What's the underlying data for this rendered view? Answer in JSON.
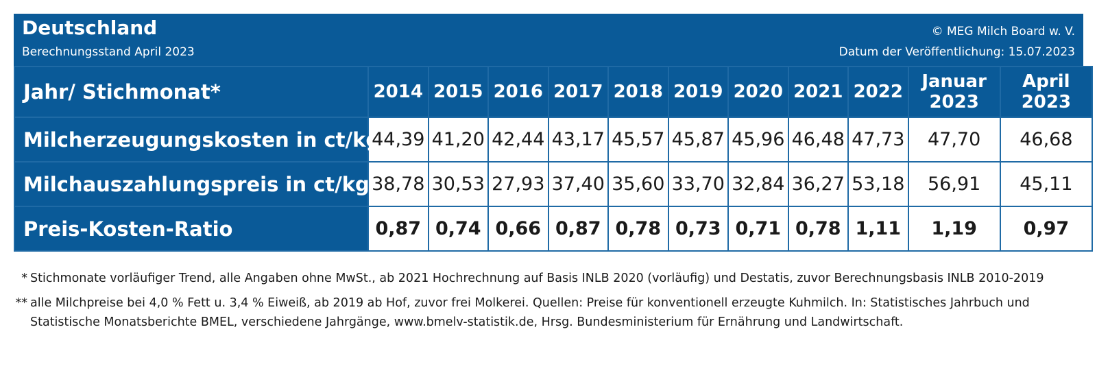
{
  "header": {
    "title": "Deutschland",
    "subtitle": "Berechnungsstand April 2023",
    "copyright": "© MEG Milch Board w. V.",
    "publication_date": "Datum der Veröffentlichung: 15.07.2023"
  },
  "chart_data": {
    "type": "table",
    "corner_label": "Jahr/ Stichmonat*",
    "columns": [
      {
        "line1": "2014",
        "line2": ""
      },
      {
        "line1": "2015",
        "line2": ""
      },
      {
        "line1": "2016",
        "line2": ""
      },
      {
        "line1": "2017",
        "line2": ""
      },
      {
        "line1": "2018",
        "line2": ""
      },
      {
        "line1": "2019",
        "line2": ""
      },
      {
        "line1": "2020",
        "line2": ""
      },
      {
        "line1": "2021",
        "line2": ""
      },
      {
        "line1": "2022",
        "line2": ""
      },
      {
        "line1": "Januar",
        "line2": "2023"
      },
      {
        "line1": "April",
        "line2": "2023"
      }
    ],
    "rows": [
      {
        "label": "Milcherzeugungskosten in ct/kg",
        "values": [
          "44,39",
          "41,20",
          "42,44",
          "43,17",
          "45,57",
          "45,87",
          "45,96",
          "46,48",
          "47,73",
          "47,70",
          "46,68"
        ]
      },
      {
        "label": "Milchauszahlungspreis in ct/kg**",
        "values": [
          "38,78",
          "30,53",
          "27,93",
          "37,40",
          "35,60",
          "33,70",
          "32,84",
          "36,27",
          "53,18",
          "56,91",
          "45,11"
        ]
      },
      {
        "label": "Preis-Kosten-Ratio",
        "values": [
          "0,87",
          "0,74",
          "0,66",
          "0,87",
          "0,78",
          "0,73",
          "0,71",
          "0,78",
          "1,11",
          "1,19",
          "0,97"
        ]
      }
    ]
  },
  "footnotes": [
    {
      "mark": "*",
      "text": "Stichmonate vorläufiger Trend, alle Angaben ohne MwSt., ab 2021 Hochrechnung auf Basis INLB 2020 (vorläufig) und Destatis, zuvor Berechnungsbasis INLB 2010-2019"
    },
    {
      "mark": "**",
      "text": "alle Milchpreise bei 4,0 % Fett u. 3,4 % Eiweiß, ab 2019 ab Hof, zuvor frei Molkerei. Quellen: Preise für konventionell erzeugte Kuhmilch. In: Statistisches Jahrbuch und Statistische Monatsberichte BMEL, verschiedene Jahrgänge, www.bmelv-statistik.de, Hrsg. Bundesministerium für Ernährung und Landwirtschaft."
    }
  ]
}
